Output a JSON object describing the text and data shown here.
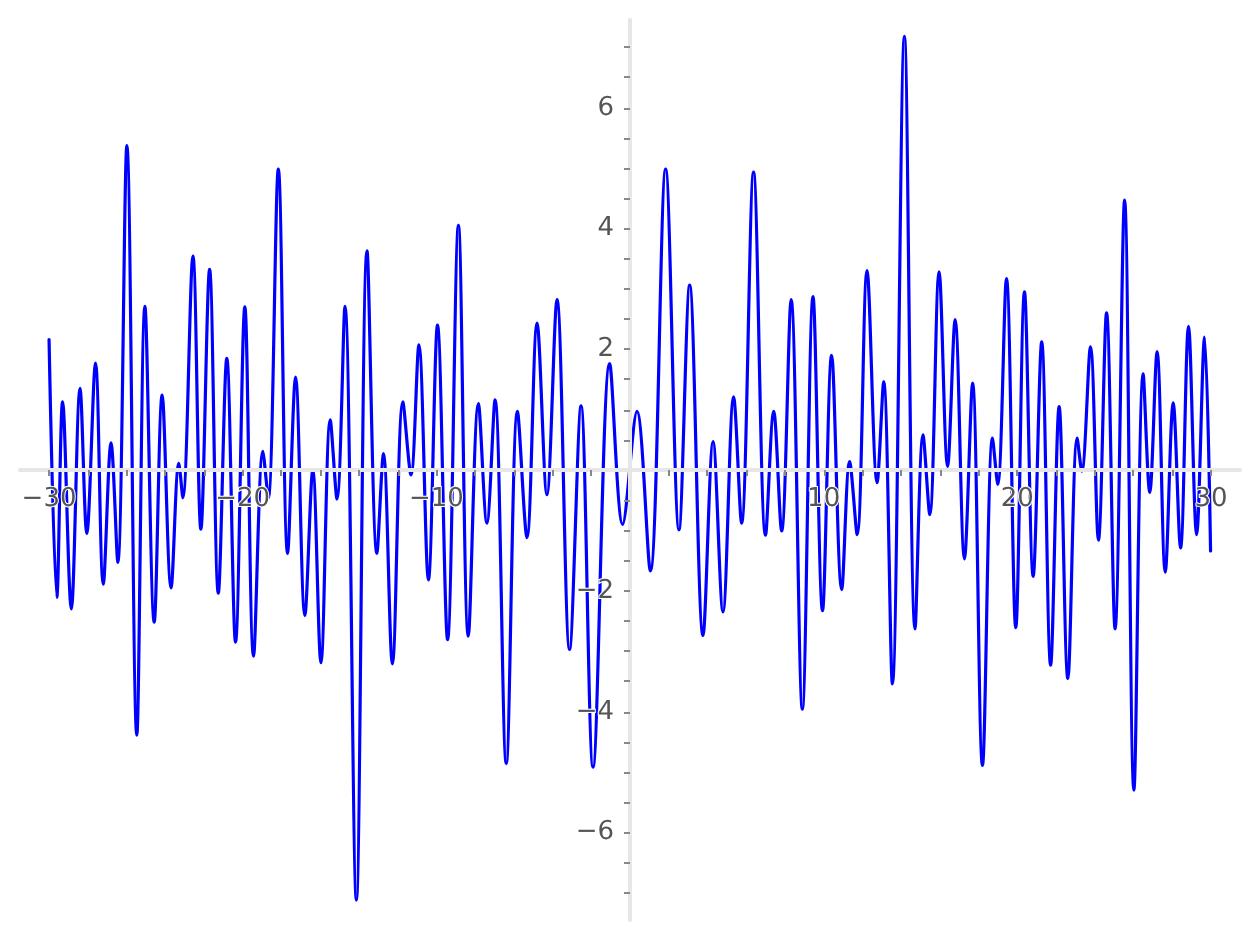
{
  "chart_data": {
    "type": "line",
    "color": "#0000ff",
    "grid": false,
    "marker": "none",
    "line_style": "solid",
    "xlim": [
      -31.5,
      31.5
    ],
    "ylim": [
      -7.45,
      7.45
    ],
    "xticks": [
      -30,
      {
        "value": -28,
        "label": null
      },
      {
        "value": -26,
        "label": null
      },
      {
        "value": -24,
        "label": null
      },
      {
        "value": -22,
        "label": null
      },
      -20,
      {
        "value": -18,
        "label": null
      },
      {
        "value": -16,
        "label": null
      },
      {
        "value": -14,
        "label": null
      },
      {
        "value": -12,
        "label": null
      },
      -10,
      {
        "value": -8,
        "label": null
      },
      {
        "value": -6,
        "label": null
      },
      {
        "value": -4,
        "label": null
      },
      {
        "value": -2,
        "label": null
      },
      {
        "value": 2,
        "label": null
      },
      {
        "value": 4,
        "label": null
      },
      {
        "value": 6,
        "label": null
      },
      {
        "value": 8,
        "label": null
      },
      10,
      {
        "value": 12,
        "label": null
      },
      {
        "value": 14,
        "label": null
      },
      {
        "value": 16,
        "label": null
      },
      {
        "value": 18,
        "label": null
      },
      20,
      {
        "value": 22,
        "label": null
      },
      {
        "value": 24,
        "label": null
      },
      {
        "value": 26,
        "label": null
      },
      {
        "value": 28,
        "label": null
      },
      30
    ],
    "yticks": [
      {
        "value": -7,
        "label": null
      },
      {
        "value": -6.5,
        "label": null
      },
      -6,
      {
        "value": -5.5,
        "label": null
      },
      {
        "value": -5,
        "label": null
      },
      {
        "value": -4.5,
        "label": null
      },
      -4,
      {
        "value": -3.5,
        "label": null
      },
      {
        "value": -3,
        "label": null
      },
      {
        "value": -2.5,
        "label": null
      },
      -2,
      {
        "value": -1.5,
        "label": null
      },
      {
        "value": -1,
        "label": null
      },
      {
        "value": -0.5,
        "label": null
      },
      {
        "value": 0.5,
        "label": null
      },
      {
        "value": 1,
        "label": null
      },
      {
        "value": 1.5,
        "label": null
      },
      2,
      {
        "value": 2.5,
        "label": null
      },
      {
        "value": 3,
        "label": null
      },
      {
        "value": 3.5,
        "label": null
      },
      4,
      {
        "value": 4.5,
        "label": null
      },
      {
        "value": 5,
        "label": null
      },
      {
        "value": 5.5,
        "label": null
      },
      6,
      {
        "value": 6.5,
        "label": null
      },
      {
        "value": 7,
        "label": null
      }
    ],
    "x": [
      -30.0,
      -29.6,
      -29.3,
      -28.85,
      -28.4,
      -28.05,
      -27.6,
      -27.2,
      -26.8,
      -26.45,
      -25.98,
      -25.47,
      -25.05,
      -24.57,
      -24.16,
      -23.7,
      -23.3,
      -23.09,
      -22.57,
      -22.16,
      -21.71,
      -21.26,
      -20.82,
      -20.37,
      -19.89,
      -19.44,
      -18.96,
      -18.68,
      -18.16,
      -17.68,
      -17.27,
      -16.79,
      -16.38,
      -15.96,
      -15.48,
      -15.13,
      -14.72,
      -14.13,
      -13.58,
      -13.07,
      -12.73,
      -12.27,
      -11.73,
      -11.31,
      -10.9,
      -10.41,
      -9.94,
      -9.42,
      -8.86,
      -8.35,
      -7.83,
      -7.39,
      -6.97,
      -6.39,
      -5.81,
      -5.32,
      -4.8,
      -4.29,
      -3.77,
      -3.12,
      -2.53,
      -1.91,
      -1.05,
      -0.38,
      0.36,
      1.05,
      1.84,
      2.53,
      3.08,
      3.77,
      4.29,
      4.8,
      5.35,
      5.76,
      6.38,
      7.0,
      7.42,
      7.83,
      8.32,
      8.9,
      9.45,
      9.94,
      10.41,
      10.93,
      11.34,
      11.73,
      12.24,
      12.76,
      13.1,
      13.55,
      14.17,
      14.72,
      15.13,
      15.48,
      15.96,
      16.4,
      16.79,
      17.27,
      17.69,
      18.2,
      18.72,
      18.99,
      19.44,
      19.92,
      20.37,
      20.82,
      21.26,
      21.72,
      22.16,
      22.61,
      23.09,
      23.33,
      23.78,
      24.19,
      24.61,
      25.05,
      25.54,
      26.02,
      26.5,
      26.84,
      27.22,
      27.64,
      28.05,
      28.43,
      28.84,
      29.26,
      29.67,
      29.98
    ],
    "values": [
      2.16,
      -2.11,
      1.13,
      -2.3,
      1.35,
      -1.05,
      1.77,
      -1.89,
      0.45,
      -1.53,
      5.37,
      -4.39,
      2.71,
      -2.52,
      1.24,
      -1.95,
      0.11,
      -0.46,
      3.54,
      -0.98,
      3.32,
      -2.04,
      1.85,
      -2.85,
      2.7,
      -3.08,
      0.31,
      -0.46,
      4.98,
      -1.38,
      1.54,
      -2.41,
      0.0,
      -3.19,
      0.83,
      -0.48,
      2.71,
      -7.12,
      3.63,
      -1.38,
      0.27,
      -3.21,
      1.13,
      -0.08,
      2.07,
      -1.82,
      2.4,
      -2.81,
      4.05,
      -2.75,
      1.1,
      -0.88,
      1.16,
      -4.86,
      0.97,
      -1.12,
      2.43,
      -0.41,
      2.82,
      -2.97,
      1.06,
      -4.92,
      1.76,
      -0.9,
      0.97,
      -1.67,
      4.98,
      -0.99,
      3.06,
      -2.74,
      0.47,
      -2.35,
      1.21,
      -0.88,
      4.93,
      -1.08,
      0.97,
      -1.01,
      2.82,
      -3.96,
      2.87,
      -2.33,
      1.9,
      -1.98,
      0.14,
      -1.07,
      3.3,
      -0.21,
      1.46,
      -3.54,
      7.18,
      -2.63,
      0.58,
      -0.74,
      3.28,
      0.06,
      2.49,
      -1.47,
      1.44,
      -4.89,
      0.53,
      -0.24,
      3.17,
      -2.61,
      2.95,
      -1.76,
      2.12,
      -3.23,
      1.05,
      -3.45,
      0.53,
      -0.02,
      2.04,
      -1.16,
      2.6,
      -2.63,
      4.47,
      -5.3,
      1.59,
      -0.37,
      1.96,
      -1.69,
      1.11,
      -1.29,
      2.38,
      -1.07,
      2.2,
      -1.34
    ]
  }
}
